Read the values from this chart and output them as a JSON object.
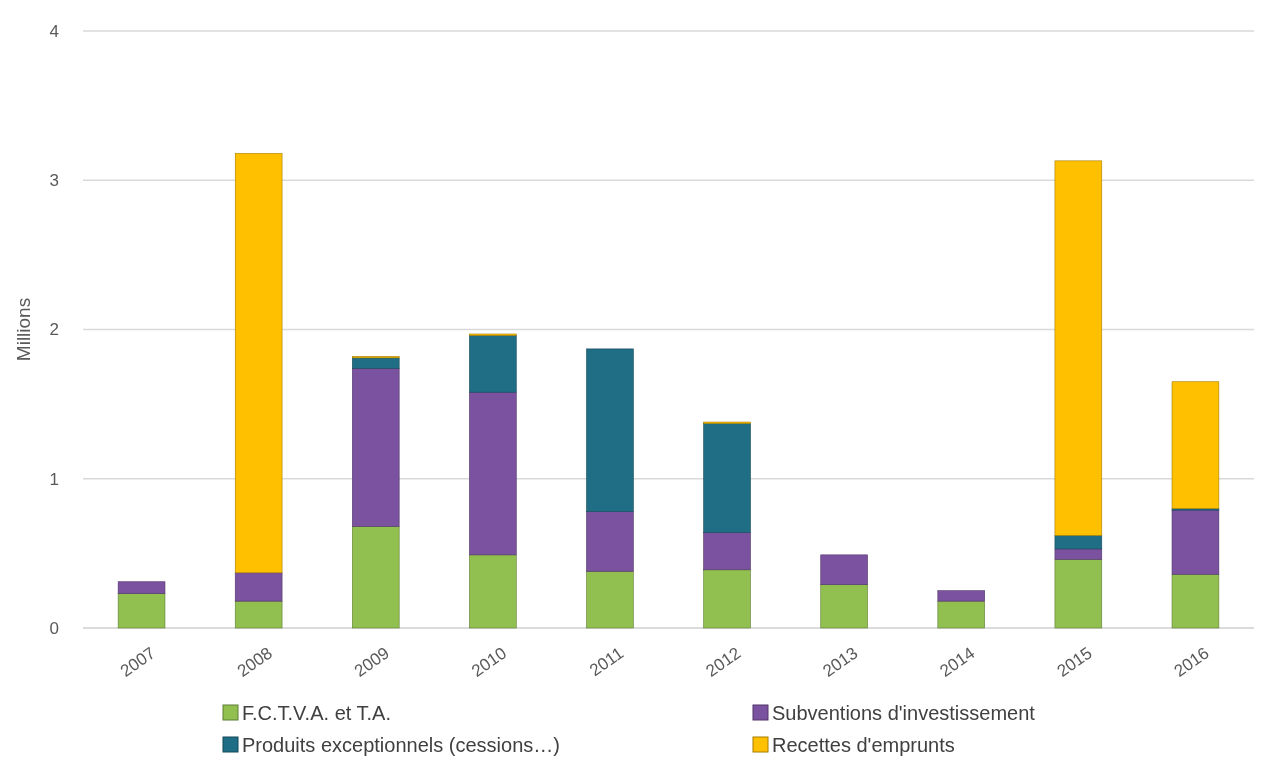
{
  "chart_data": {
    "type": "bar",
    "stacked": true,
    "ylabel": "Millions",
    "categories": [
      "2007",
      "2008",
      "2009",
      "2010",
      "2011",
      "2012",
      "2013",
      "2014",
      "2015",
      "2016"
    ],
    "series": [
      {
        "name": "F.C.T.V.A. et T.A.",
        "color": "#92c050",
        "values": [
          0.23,
          0.18,
          0.68,
          0.49,
          0.38,
          0.39,
          0.29,
          0.18,
          0.46,
          0.36
        ]
      },
      {
        "name": "Subventions d'investissement",
        "color": "#7a52a0",
        "values": [
          0.08,
          0.19,
          1.06,
          1.09,
          0.4,
          0.25,
          0.2,
          0.07,
          0.07,
          0.43
        ]
      },
      {
        "name": "Produits exceptionnels (cessions…)",
        "color": "#1f6e86",
        "values": [
          0,
          0,
          0.07,
          0.38,
          1.09,
          0.73,
          0,
          0,
          0.09,
          0.01
        ]
      },
      {
        "name": "Recettes d'emprunts",
        "color": "#ffc000",
        "values": [
          0,
          2.81,
          0.01,
          0.01,
          0,
          0.01,
          0,
          0,
          2.51,
          0.85
        ]
      }
    ],
    "ylim": [
      0,
      4
    ],
    "yticks": [
      0,
      1,
      2,
      3,
      4
    ],
    "grid": "y",
    "legend": "bottom"
  }
}
